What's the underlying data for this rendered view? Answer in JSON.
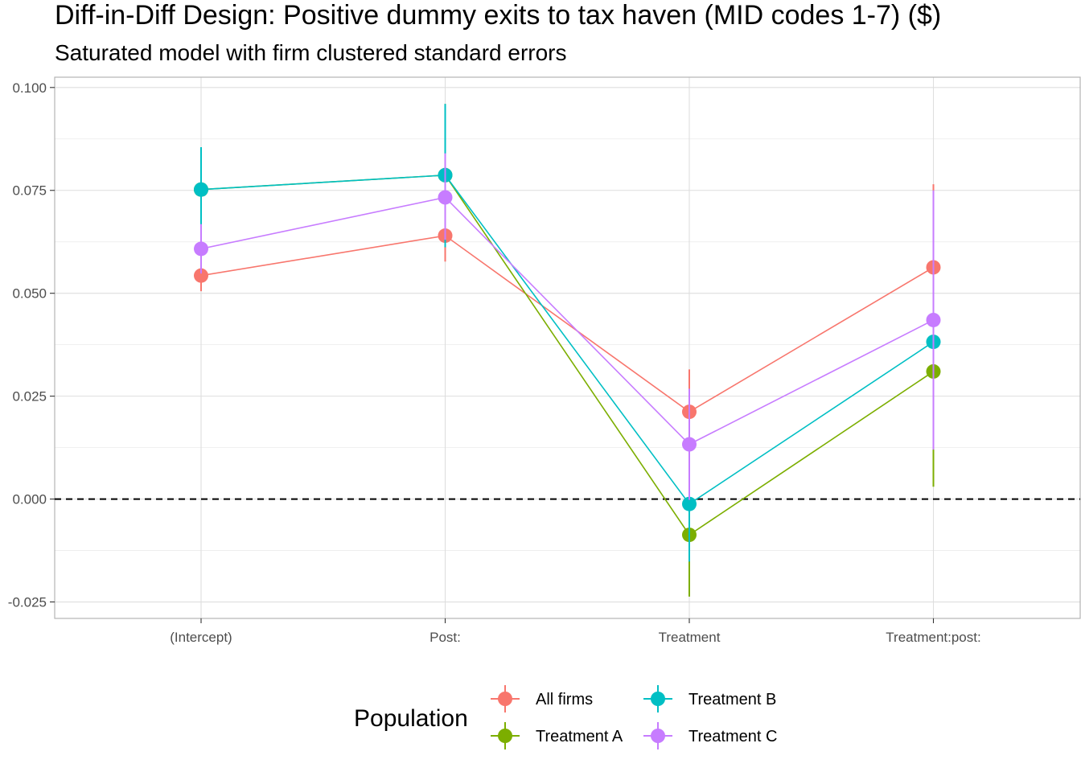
{
  "chart_data": {
    "type": "scatter",
    "title": "Diff-in-Diff Design: Positive dummy exits to tax haven (MID codes 1-7)  ($)",
    "subtitle": "Saturated model with firm clustered standard errors",
    "xlabel": "",
    "ylabel": "",
    "categories": [
      "(Intercept)",
      "Post:",
      "Treatment",
      "Treatment:post:"
    ],
    "ylim": [
      -0.029,
      0.1025
    ],
    "yticks": [
      -0.025,
      0.0,
      0.025,
      0.05,
      0.075,
      0.1
    ],
    "ytick_labels": [
      "-0.025",
      "0.000",
      "0.025",
      "0.050",
      "0.075",
      "0.100"
    ],
    "reference_line": {
      "y": 0.0,
      "style": "dashed"
    },
    "grid": true,
    "legend": {
      "title": "Population",
      "position": "bottom"
    },
    "series": [
      {
        "name": "All firms",
        "color": "#F8766D",
        "values": [
          0.0543,
          0.064,
          0.0212,
          0.0563
        ],
        "lower": [
          0.0505,
          0.0577,
          0.0105,
          0.036
        ],
        "upper": [
          0.058,
          0.0703,
          0.0315,
          0.0765
        ]
      },
      {
        "name": "Treatment A",
        "color": "#7CAE00",
        "values": [
          0.0752,
          0.0787,
          -0.0087,
          0.031
        ],
        "lower": [
          0.0648,
          0.0612,
          -0.0237,
          0.003
        ],
        "upper": [
          0.0855,
          0.096,
          0.0065,
          0.059
        ]
      },
      {
        "name": "Treatment B",
        "color": "#00BFC4",
        "values": [
          0.0752,
          0.0787,
          -0.0012,
          0.0382
        ],
        "lower": [
          0.0648,
          0.0612,
          -0.0152,
          0.021
        ],
        "upper": [
          0.0855,
          0.096,
          0.0128,
          0.0555
        ]
      },
      {
        "name": "Treatment C",
        "color": "#C77CFF",
        "values": [
          0.0608,
          0.0733,
          0.0133,
          0.0435
        ],
        "lower": [
          0.0548,
          0.063,
          -0.0002,
          0.012
        ],
        "upper": [
          0.0668,
          0.084,
          0.0268,
          0.075
        ]
      }
    ]
  }
}
